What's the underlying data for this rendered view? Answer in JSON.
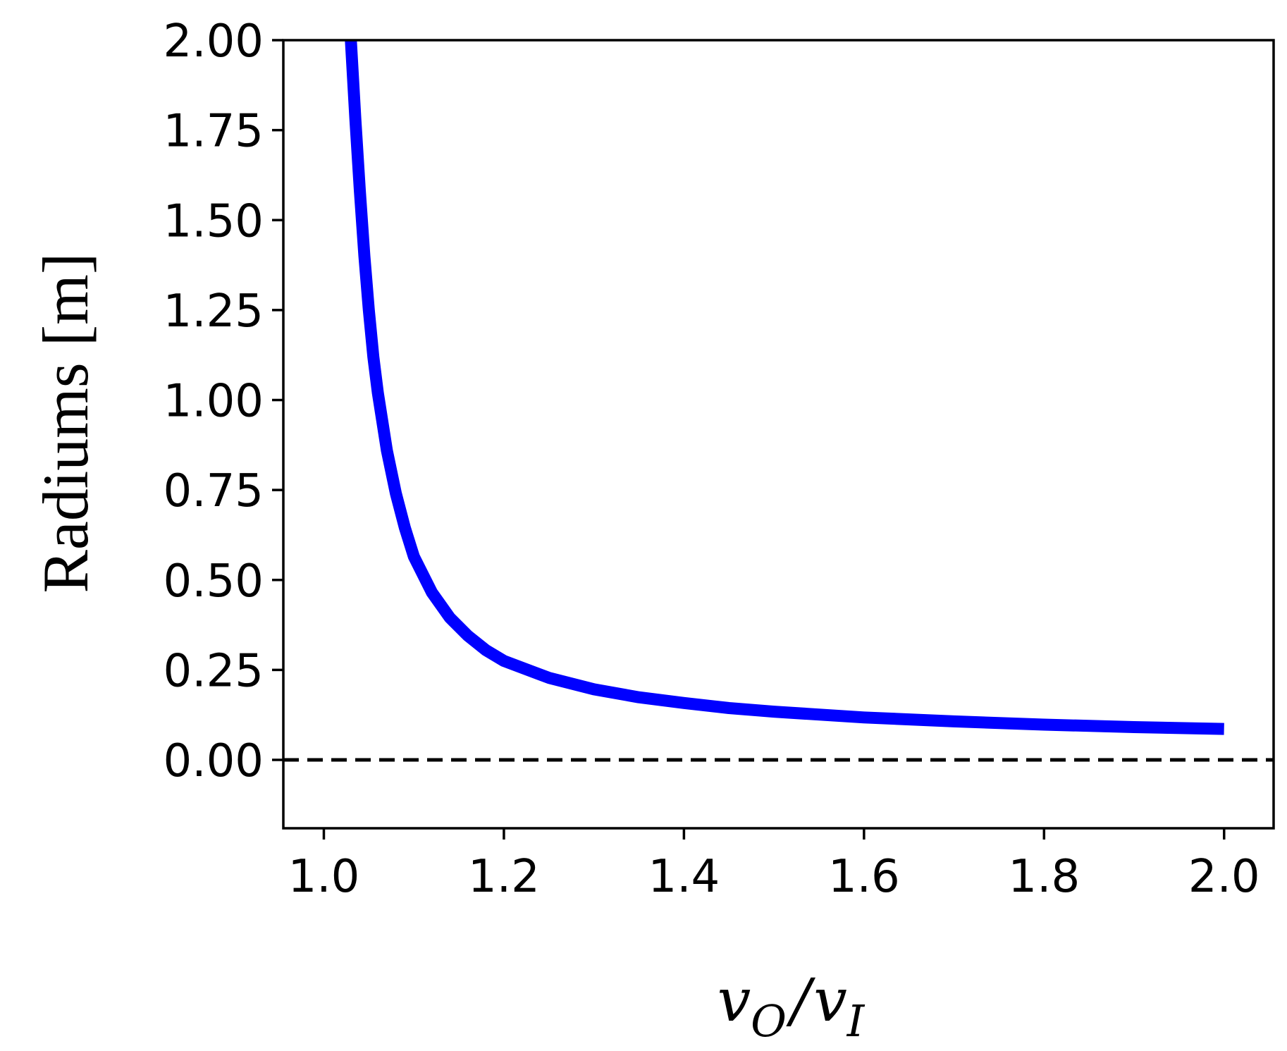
{
  "chart_data": {
    "type": "line",
    "title": "",
    "xlabel": "v_O / v_I",
    "xlabel_parts": {
      "num_var": "v",
      "num_sub": "O",
      "slash": "/",
      "den_var": "v",
      "den_sub": "I"
    },
    "ylabel": "Radiums [m]",
    "xlim": [
      0.955,
      2.055
    ],
    "ylim": [
      -0.19,
      2.0
    ],
    "xticks": [
      1.0,
      1.2,
      1.4,
      1.6,
      1.8,
      2.0
    ],
    "xtick_labels": [
      "1.0",
      "1.2",
      "1.4",
      "1.6",
      "1.8",
      "2.0"
    ],
    "yticks": [
      0.0,
      0.25,
      0.5,
      0.75,
      1.0,
      1.25,
      1.5,
      1.75,
      2.0
    ],
    "ytick_labels": [
      "0.00",
      "0.25",
      "0.50",
      "0.75",
      "1.00",
      "1.25",
      "1.50",
      "1.75",
      "2.00"
    ],
    "grid": false,
    "reference_line": {
      "y": 0.0,
      "style": "dashed",
      "color": "#000000"
    },
    "series": [
      {
        "color": "#0000ff",
        "x": [
          1.03,
          1.035,
          1.04,
          1.045,
          1.05,
          1.055,
          1.06,
          1.07,
          1.08,
          1.09,
          1.1,
          1.12,
          1.14,
          1.16,
          1.18,
          1.2,
          1.25,
          1.3,
          1.35,
          1.4,
          1.45,
          1.5,
          1.6,
          1.7,
          1.8,
          1.9,
          2.0
        ],
        "y": [
          2.0,
          1.78,
          1.58,
          1.4,
          1.25,
          1.12,
          1.02,
          0.86,
          0.74,
          0.645,
          0.565,
          0.465,
          0.395,
          0.345,
          0.305,
          0.275,
          0.228,
          0.196,
          0.174,
          0.158,
          0.144,
          0.134,
          0.118,
          0.107,
          0.098,
          0.091,
          0.086
        ]
      }
    ]
  }
}
